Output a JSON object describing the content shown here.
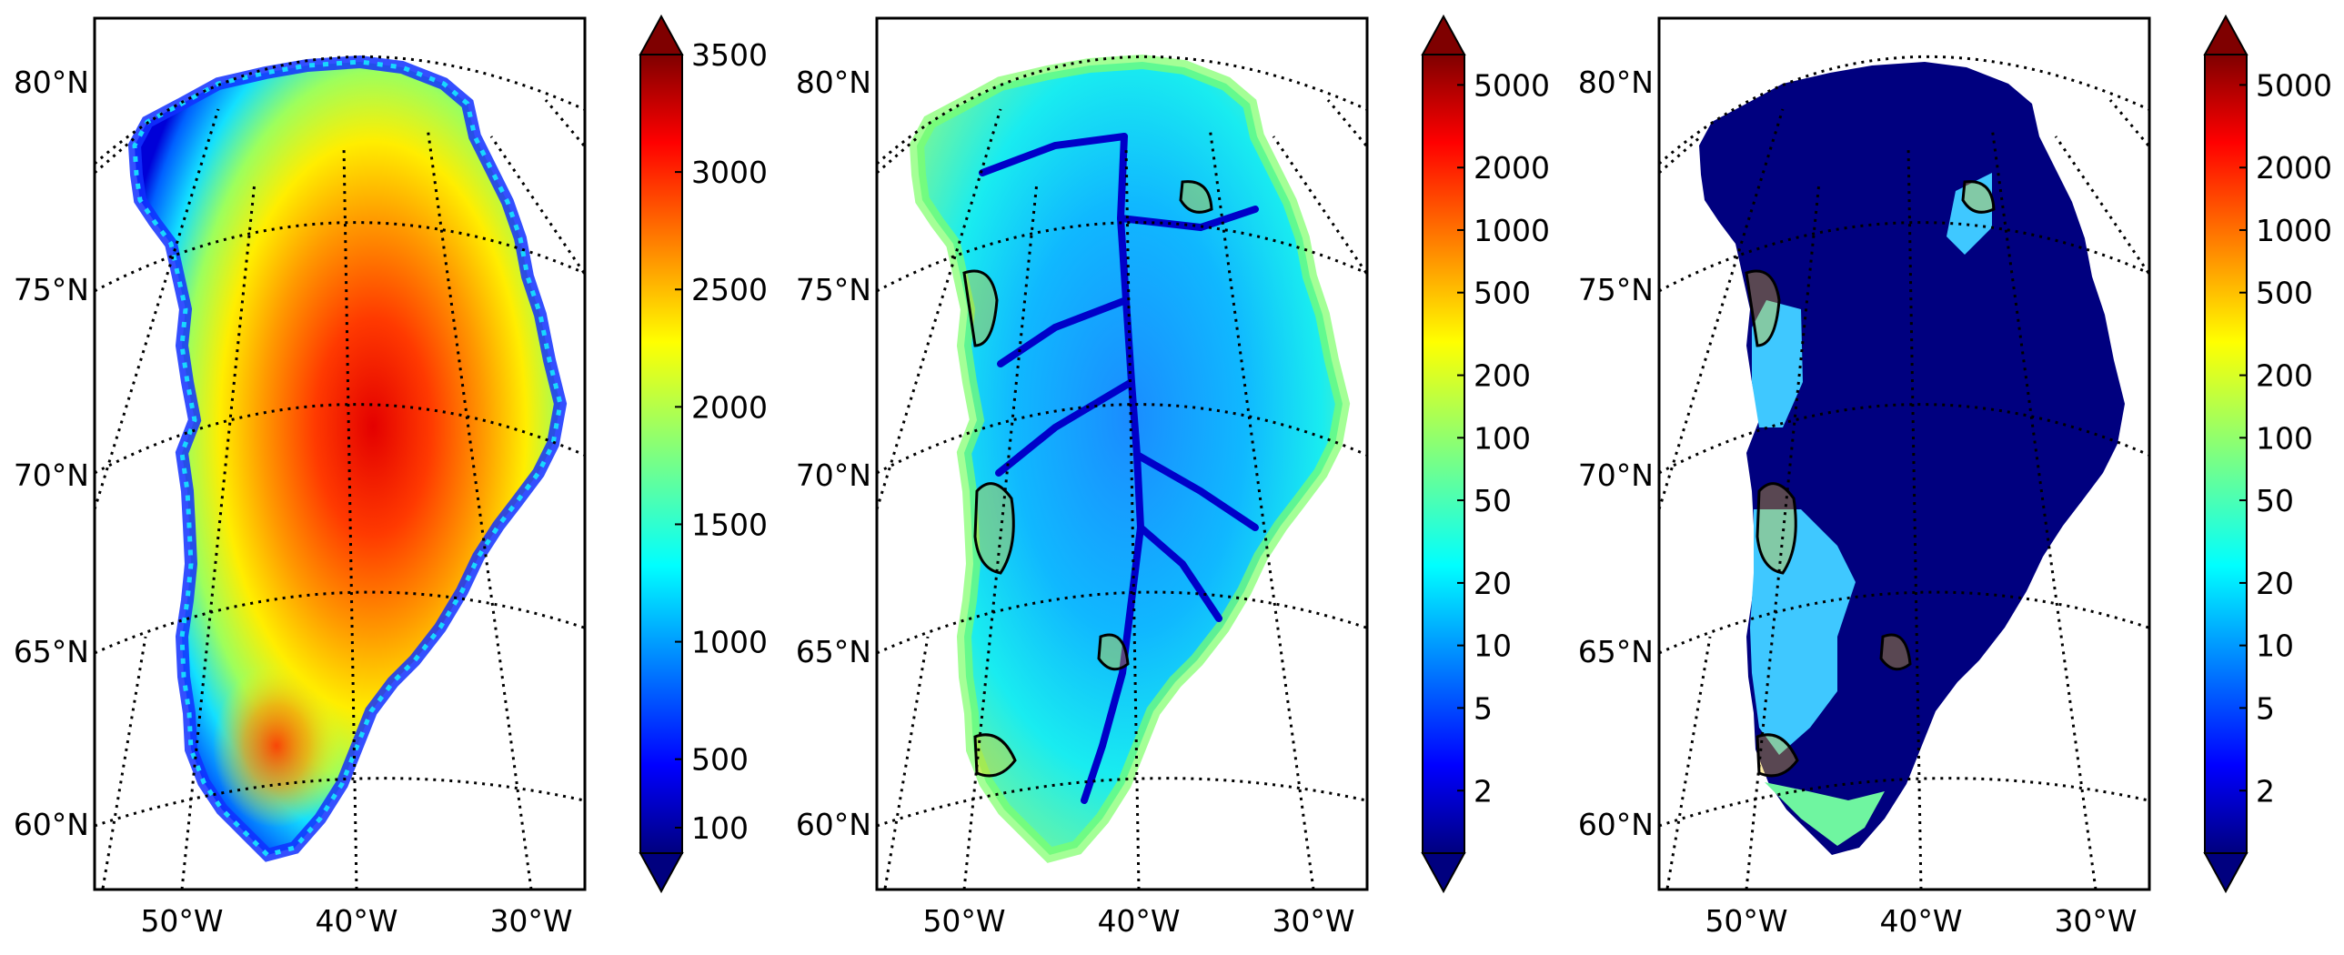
{
  "panels": [
    {
      "lat_labels": [
        "80°N",
        "75°N",
        "70°N",
        "65°N",
        "60°N"
      ],
      "lon_labels": [
        "50°W",
        "40°W",
        "30°W"
      ],
      "colorbar": {
        "scale": "linear",
        "ticks": [
          "3500",
          "3000",
          "2500",
          "2000",
          "1500",
          "1000",
          "500",
          "100"
        ]
      },
      "field": "surface-elevation"
    },
    {
      "lat_labels": [
        "80°N",
        "75°N",
        "70°N",
        "65°N",
        "60°N"
      ],
      "lon_labels": [
        "50°W",
        "40°W",
        "30°W"
      ],
      "colorbar": {
        "scale": "log",
        "ticks": [
          "5000",
          "2000",
          "1000",
          "500",
          "200",
          "100",
          "50",
          "20",
          "10",
          "5",
          "2"
        ]
      },
      "field": "surface-velocity"
    },
    {
      "lat_labels": [
        "80°N",
        "75°N",
        "70°N",
        "65°N",
        "60°N"
      ],
      "lon_labels": [
        "50°W",
        "40°W",
        "30°W"
      ],
      "colorbar": {
        "scale": "log",
        "ticks": [
          "5000",
          "2000",
          "1000",
          "500",
          "200",
          "100",
          "50",
          "20",
          "10",
          "5",
          "2"
        ]
      },
      "field": "sliding-velocity"
    }
  ],
  "colormap": "jet",
  "colors": {
    "jet": [
      "#00007f",
      "#0000ff",
      "#007fff",
      "#00ffff",
      "#7fff7f",
      "#ffff00",
      "#ff7f00",
      "#ff0000",
      "#7f0000"
    ]
  }
}
